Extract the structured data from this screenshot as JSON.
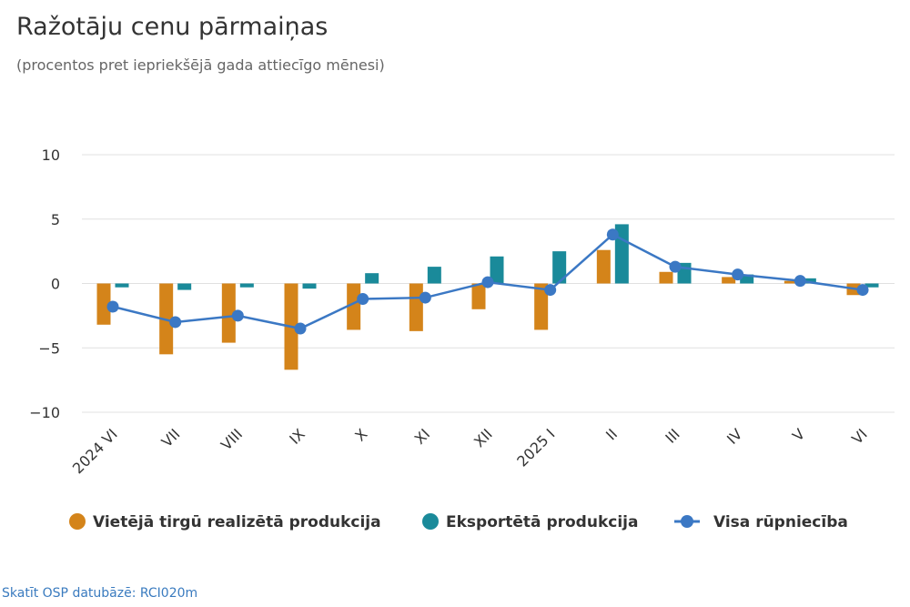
{
  "chart_data": {
    "type": "bar",
    "title": "Ražotāju cenu pārmaiņas",
    "subtitle": "(procentos pret iepriekšējā gada attiecīgo mēnesi)",
    "categories": [
      "2024 VI",
      "VII",
      "VIII",
      "IX",
      "X",
      "XI",
      "XII",
      "2025 I",
      "II",
      "III",
      "IV",
      "V",
      "VI"
    ],
    "ylim": [
      -10,
      10
    ],
    "yticks": [
      -10,
      -5,
      0,
      5,
      10
    ],
    "ytick_labels": [
      "−10",
      "−5",
      "0",
      "5",
      "10"
    ],
    "grid": true,
    "legend_position": "bottom",
    "series": [
      {
        "name": "Vietējā tirgū realizētā produkcija",
        "kind": "bar",
        "color": "#d4841a",
        "values": [
          -3.2,
          -5.5,
          -4.6,
          -6.7,
          -3.6,
          -3.7,
          -2.0,
          -3.6,
          2.6,
          0.9,
          0.5,
          0.2,
          -0.9
        ]
      },
      {
        "name": "Eksportētā produkcija",
        "kind": "bar",
        "color": "#1a8a9a",
        "values": [
          -0.3,
          -0.5,
          -0.3,
          -0.4,
          0.8,
          1.3,
          2.1,
          2.5,
          4.6,
          1.6,
          0.7,
          0.4,
          -0.3
        ]
      },
      {
        "name": "Visa rūpniecība",
        "kind": "line",
        "color": "#3b78c4",
        "values": [
          -1.8,
          -3.0,
          -2.5,
          -3.5,
          -1.2,
          -1.1,
          0.1,
          -0.5,
          3.8,
          1.3,
          0.7,
          0.2,
          -0.5
        ]
      }
    ]
  },
  "source": "Skatīt OSP datubāzē: RCI020m"
}
